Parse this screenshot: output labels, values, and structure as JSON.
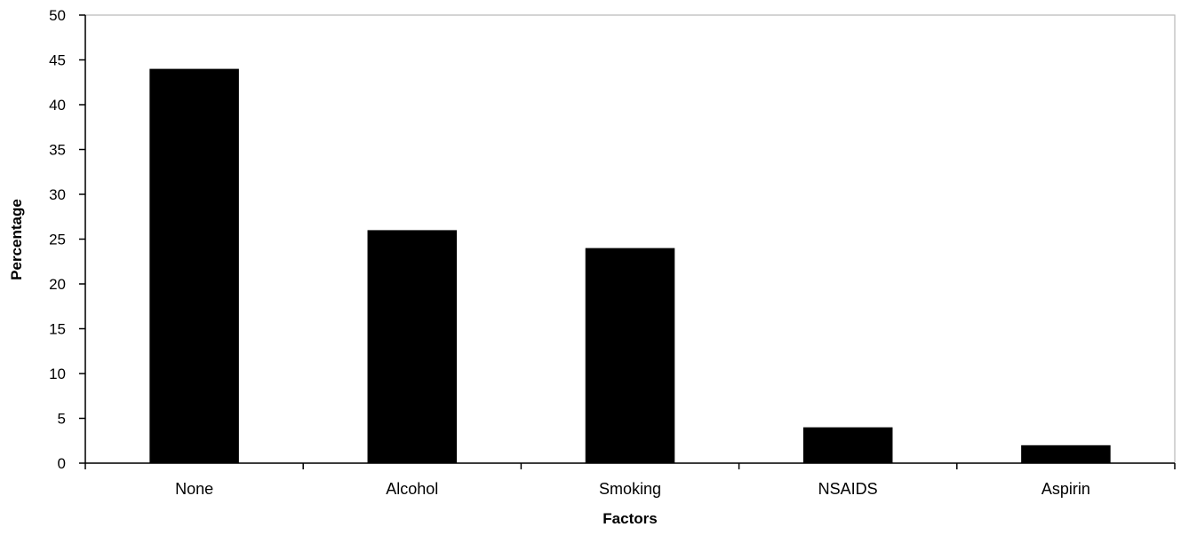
{
  "chart_data": {
    "type": "bar",
    "title": "",
    "xlabel": "Factors",
    "ylabel": "Percentage",
    "categories": [
      "None",
      "Alcohol",
      "Smoking",
      "NSAIDS",
      "Aspirin"
    ],
    "values": [
      44,
      26,
      24,
      4,
      2
    ],
    "ylim": [
      0,
      50
    ],
    "yticks": [
      "0",
      "5",
      "10",
      "15",
      "20",
      "25",
      "30",
      "35",
      "40",
      "45",
      "50"
    ],
    "grid": false,
    "legend": "none",
    "bar_color": "#000000"
  }
}
